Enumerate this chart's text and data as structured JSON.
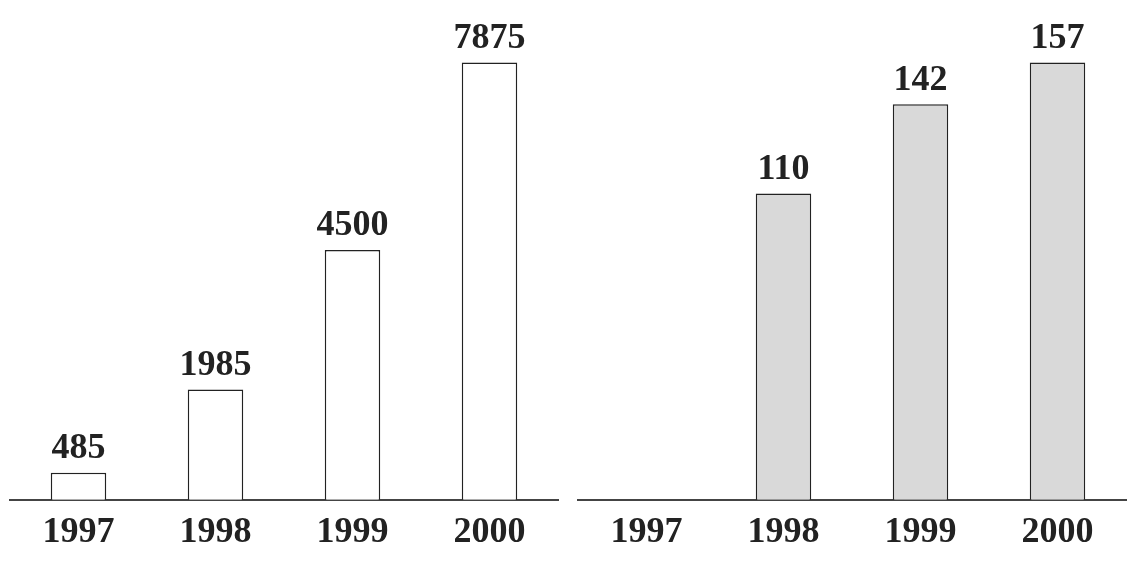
{
  "chart_data": [
    {
      "type": "bar",
      "categories": [
        "1997",
        "1998",
        "1999",
        "2000"
      ],
      "values": [
        485,
        1985,
        4500,
        7875
      ],
      "color": "#ffffff",
      "data_labels": true,
      "tick_labels": "x"
    },
    {
      "type": "bar",
      "categories": [
        "1997",
        "1998",
        "1999",
        "2000"
      ],
      "values": [
        null,
        110,
        142,
        157
      ],
      "color": "#d9d9d9",
      "data_labels": true,
      "tick_labels": "x"
    }
  ]
}
